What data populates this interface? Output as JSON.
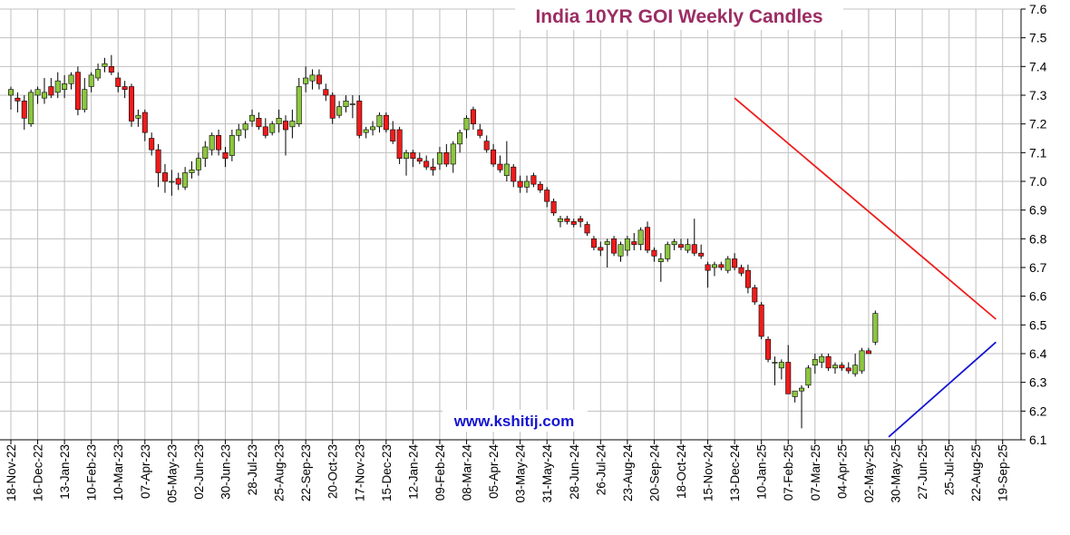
{
  "chart_data": {
    "type": "candlestick",
    "title": "India 10YR GOI Weekly Candles",
    "annotation": "www.kshitij.com",
    "ylim": [
      6.1,
      7.6
    ],
    "y_ticks": [
      "6.1",
      "6.2",
      "6.3",
      "6.4",
      "6.5",
      "6.6",
      "6.7",
      "6.8",
      "6.9",
      "7.0",
      "7.1",
      "7.2",
      "7.3",
      "7.4",
      "7.5",
      "7.6"
    ],
    "x_tick_labels": [
      "18-Nov-22",
      "16-Dec-22",
      "13-Jan-23",
      "10-Feb-23",
      "10-Mar-23",
      "07-Apr-23",
      "05-May-23",
      "02-Jun-23",
      "30-Jun-23",
      "28-Jul-23",
      "25-Aug-23",
      "22-Sep-23",
      "20-Oct-23",
      "17-Nov-23",
      "15-Dec-23",
      "12-Jan-24",
      "09-Feb-24",
      "08-Mar-24",
      "05-Apr-24",
      "03-May-24",
      "31-May-24",
      "28-Jun-24",
      "26-Jul-24",
      "23-Aug-24",
      "20-Sep-24",
      "18-Oct-24",
      "15-Nov-24",
      "13-Dec-24",
      "10-Jan-25",
      "07-Feb-25",
      "07-Mar-25",
      "04-Apr-25",
      "02-May-25",
      "30-May-25",
      "27-Jun-25",
      "25-Jul-25",
      "22-Aug-25",
      "19-Sep-25"
    ],
    "grid": true,
    "axis_position": "right",
    "colors": {
      "up": "#8cc63f",
      "down": "#ee1c1c",
      "outline": "#000000",
      "resistance": "#ee1c1c",
      "support": "#1414d2",
      "grid": "#c0c0c0"
    },
    "candles": [
      [
        7.3,
        7.33,
        7.25,
        7.32
      ],
      [
        7.29,
        7.31,
        7.24,
        7.28
      ],
      [
        7.28,
        7.3,
        7.18,
        7.22
      ],
      [
        7.2,
        7.32,
        7.19,
        7.31
      ],
      [
        7.3,
        7.33,
        7.27,
        7.32
      ],
      [
        7.29,
        7.36,
        7.27,
        7.31
      ],
      [
        7.33,
        7.36,
        7.29,
        7.3
      ],
      [
        7.31,
        7.38,
        7.29,
        7.35
      ],
      [
        7.32,
        7.37,
        7.29,
        7.34
      ],
      [
        7.34,
        7.38,
        7.32,
        7.37
      ],
      [
        7.38,
        7.4,
        7.23,
        7.25
      ],
      [
        7.25,
        7.36,
        7.24,
        7.32
      ],
      [
        7.33,
        7.38,
        7.31,
        7.37
      ],
      [
        7.36,
        7.41,
        7.35,
        7.39
      ],
      [
        7.4,
        7.43,
        7.38,
        7.41
      ],
      [
        7.4,
        7.44,
        7.37,
        7.38
      ],
      [
        7.36,
        7.38,
        7.31,
        7.33
      ],
      [
        7.33,
        7.35,
        7.29,
        7.32
      ],
      [
        7.33,
        7.34,
        7.19,
        7.21
      ],
      [
        7.22,
        7.25,
        7.19,
        7.23
      ],
      [
        7.24,
        7.25,
        7.14,
        7.17
      ],
      [
        7.15,
        7.17,
        7.09,
        7.11
      ],
      [
        7.11,
        7.13,
        6.98,
        7.03
      ],
      [
        7.03,
        7.06,
        6.96,
        7.0
      ],
      [
        7.0,
        7.04,
        6.95,
        7.0
      ],
      [
        7.01,
        7.03,
        6.97,
        6.99
      ],
      [
        6.98,
        7.05,
        6.97,
        7.03
      ],
      [
        7.03,
        7.07,
        7.01,
        7.04
      ],
      [
        7.04,
        7.1,
        7.02,
        7.08
      ],
      [
        7.08,
        7.14,
        7.05,
        7.12
      ],
      [
        7.11,
        7.17,
        7.09,
        7.16
      ],
      [
        7.16,
        7.18,
        7.09,
        7.11
      ],
      [
        7.1,
        7.12,
        7.05,
        7.08
      ],
      [
        7.09,
        7.18,
        7.07,
        7.16
      ],
      [
        7.16,
        7.2,
        7.14,
        7.18
      ],
      [
        7.18,
        7.21,
        7.15,
        7.2
      ],
      [
        7.21,
        7.25,
        7.19,
        7.23
      ],
      [
        7.22,
        7.24,
        7.18,
        7.19
      ],
      [
        7.19,
        7.22,
        7.15,
        7.16
      ],
      [
        7.17,
        7.21,
        7.16,
        7.2
      ],
      [
        7.2,
        7.25,
        7.17,
        7.22
      ],
      [
        7.21,
        7.23,
        7.09,
        7.18
      ],
      [
        7.19,
        7.25,
        7.15,
        7.21
      ],
      [
        7.2,
        7.36,
        7.19,
        7.33
      ],
      [
        7.34,
        7.4,
        7.31,
        7.36
      ],
      [
        7.35,
        7.39,
        7.32,
        7.37
      ],
      [
        7.37,
        7.39,
        7.32,
        7.34
      ],
      [
        7.32,
        7.34,
        7.28,
        7.3
      ],
      [
        7.3,
        7.31,
        7.2,
        7.22
      ],
      [
        7.23,
        7.28,
        7.22,
        7.26
      ],
      [
        7.26,
        7.3,
        7.24,
        7.28
      ],
      [
        7.27,
        7.3,
        7.22,
        7.27
      ],
      [
        7.28,
        7.3,
        7.15,
        7.16
      ],
      [
        7.17,
        7.19,
        7.15,
        7.18
      ],
      [
        7.18,
        7.21,
        7.16,
        7.19
      ],
      [
        7.19,
        7.24,
        7.17,
        7.23
      ],
      [
        7.23,
        7.24,
        7.17,
        7.18
      ],
      [
        7.18,
        7.21,
        7.13,
        7.14
      ],
      [
        7.18,
        7.19,
        7.06,
        7.08
      ],
      [
        7.08,
        7.11,
        7.02,
        7.1
      ],
      [
        7.1,
        7.11,
        7.05,
        7.08
      ],
      [
        7.08,
        7.1,
        7.06,
        7.07
      ],
      [
        7.07,
        7.09,
        7.04,
        7.05
      ],
      [
        7.05,
        7.08,
        7.02,
        7.04
      ],
      [
        7.06,
        7.12,
        7.04,
        7.1
      ],
      [
        7.1,
        7.13,
        7.05,
        7.06
      ],
      [
        7.06,
        7.14,
        7.03,
        7.13
      ],
      [
        7.13,
        7.18,
        7.1,
        7.17
      ],
      [
        7.18,
        7.23,
        7.15,
        7.22
      ],
      [
        7.25,
        7.26,
        7.18,
        7.2
      ],
      [
        7.18,
        7.2,
        7.15,
        7.16
      ],
      [
        7.14,
        7.16,
        7.1,
        7.11
      ],
      [
        7.11,
        7.13,
        7.05,
        7.06
      ],
      [
        7.06,
        7.09,
        7.03,
        7.04
      ],
      [
        7.02,
        7.14,
        7.0,
        7.06
      ],
      [
        7.05,
        7.06,
        6.98,
        7.0
      ],
      [
        7.0,
        7.02,
        6.96,
        6.98
      ],
      [
        6.98,
        7.02,
        6.96,
        7.0
      ],
      [
        7.02,
        7.03,
        6.98,
        6.99
      ],
      [
        6.99,
        7.0,
        6.96,
        6.97
      ],
      [
        6.97,
        6.98,
        6.91,
        6.93
      ],
      [
        6.93,
        6.94,
        6.88,
        6.89
      ],
      [
        6.86,
        6.88,
        6.84,
        6.87
      ],
      [
        6.87,
        6.88,
        6.85,
        6.86
      ],
      [
        6.86,
        6.87,
        6.84,
        6.85
      ],
      [
        6.87,
        6.88,
        6.84,
        6.86
      ],
      [
        6.85,
        6.86,
        6.81,
        6.82
      ],
      [
        6.8,
        6.81,
        6.76,
        6.77
      ],
      [
        6.77,
        6.79,
        6.74,
        6.76
      ],
      [
        6.78,
        6.8,
        6.7,
        6.79
      ],
      [
        6.8,
        6.81,
        6.74,
        6.75
      ],
      [
        6.74,
        6.79,
        6.72,
        6.78
      ],
      [
        6.76,
        6.81,
        6.74,
        6.8
      ],
      [
        6.79,
        6.82,
        6.76,
        6.78
      ],
      [
        6.78,
        6.84,
        6.76,
        6.83
      ],
      [
        6.84,
        6.86,
        6.75,
        6.76
      ],
      [
        6.76,
        6.77,
        6.72,
        6.74
      ],
      [
        6.72,
        6.75,
        6.65,
        6.73
      ],
      [
        6.73,
        6.79,
        6.72,
        6.78
      ],
      [
        6.78,
        6.8,
        6.76,
        6.79
      ],
      [
        6.78,
        6.8,
        6.76,
        6.77
      ],
      [
        6.76,
        6.8,
        6.75,
        6.78
      ],
      [
        6.78,
        6.87,
        6.74,
        6.75
      ],
      [
        6.75,
        6.78,
        6.73,
        6.74
      ],
      [
        6.71,
        6.72,
        6.63,
        6.69
      ],
      [
        6.7,
        6.72,
        6.67,
        6.71
      ],
      [
        6.71,
        6.72,
        6.69,
        6.7
      ],
      [
        6.69,
        6.74,
        6.68,
        6.73
      ],
      [
        6.73,
        6.75,
        6.69,
        6.7
      ],
      [
        6.7,
        6.71,
        6.67,
        6.68
      ],
      [
        6.69,
        6.71,
        6.61,
        6.63
      ],
      [
        6.63,
        6.64,
        6.57,
        6.58
      ],
      [
        6.57,
        6.58,
        6.45,
        6.46
      ],
      [
        6.45,
        6.46,
        6.37,
        6.38
      ],
      [
        6.37,
        6.39,
        6.29,
        6.37
      ],
      [
        6.35,
        6.38,
        6.31,
        6.37
      ],
      [
        6.37,
        6.43,
        6.27,
        6.26
      ],
      [
        6.25,
        6.27,
        6.23,
        6.27
      ],
      [
        6.27,
        6.29,
        6.14,
        6.28
      ],
      [
        6.29,
        6.36,
        6.28,
        6.35
      ],
      [
        6.36,
        6.4,
        6.33,
        6.38
      ],
      [
        6.37,
        6.4,
        6.35,
        6.39
      ],
      [
        6.39,
        6.4,
        6.34,
        6.35
      ],
      [
        6.35,
        6.37,
        6.33,
        6.36
      ],
      [
        6.36,
        6.37,
        6.34,
        6.35
      ],
      [
        6.35,
        6.37,
        6.33,
        6.34
      ],
      [
        6.33,
        6.4,
        6.32,
        6.36
      ],
      [
        6.34,
        6.42,
        6.33,
        6.41
      ],
      [
        6.41,
        6.42,
        6.4,
        6.4
      ],
      [
        6.44,
        6.55,
        6.43,
        6.54
      ]
    ],
    "trendlines": [
      {
        "name": "resistance",
        "from": {
          "index": 108,
          "y": 7.29
        },
        "to": {
          "index": 147,
          "y": 6.52
        }
      },
      {
        "name": "support",
        "from": {
          "index": 131,
          "y": 6.11
        },
        "to": {
          "index": 147,
          "y": 6.44
        }
      }
    ]
  }
}
